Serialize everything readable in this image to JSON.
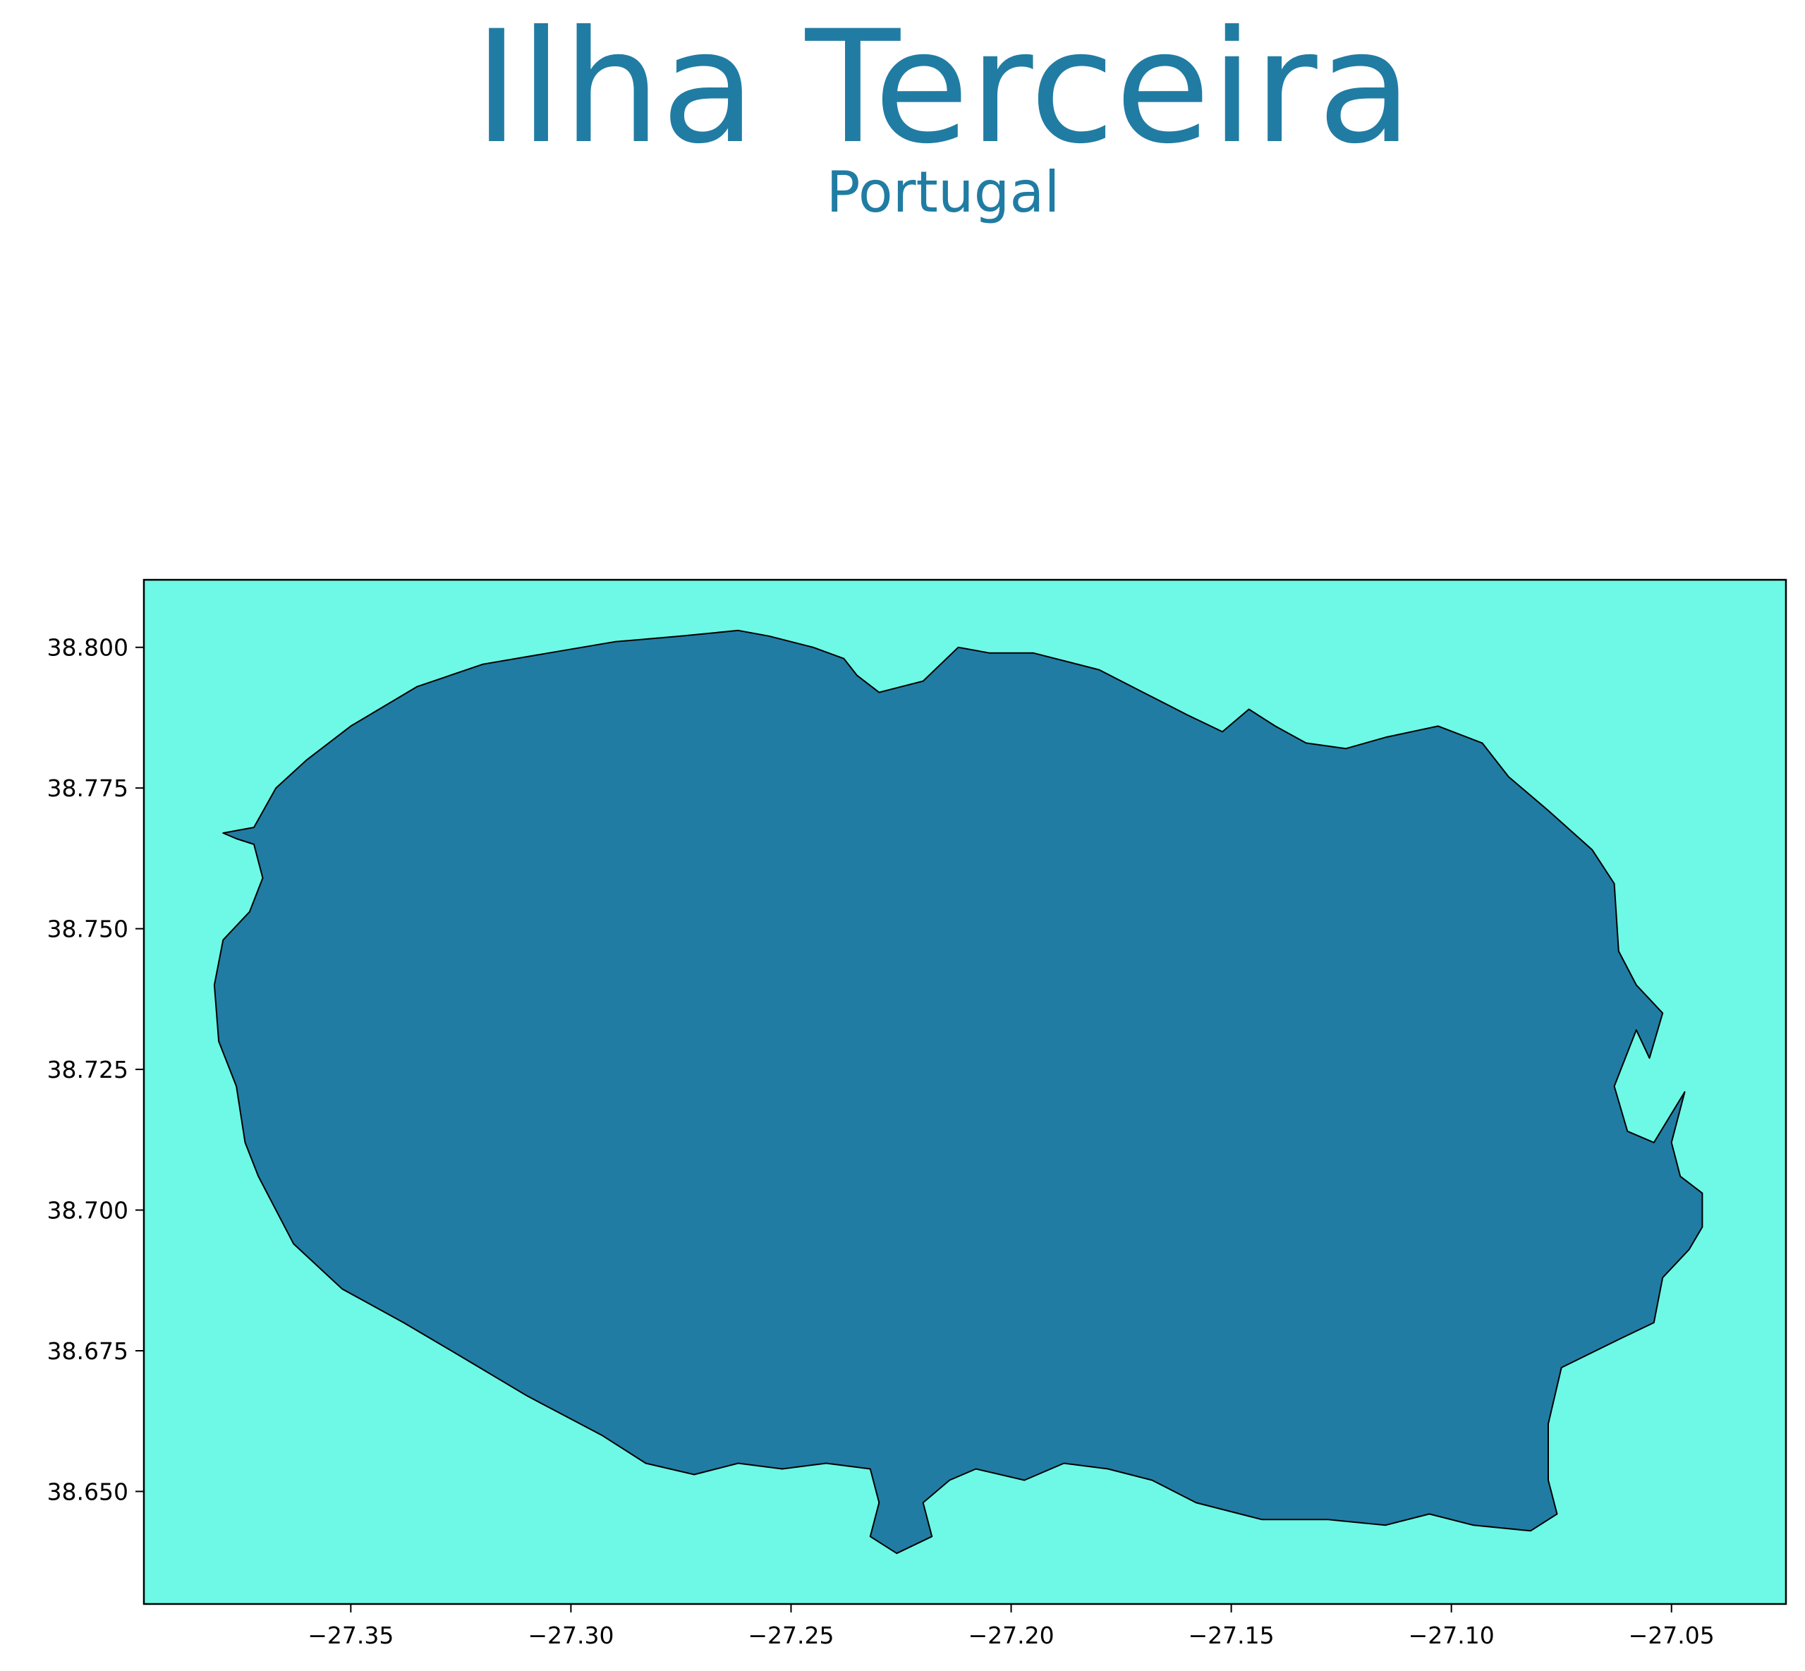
{
  "title": "Ilha Terceira",
  "subtitle": "Portugal",
  "colors": {
    "title": "#217ca3",
    "sea": "#6ef8e6",
    "land": "#217ca3",
    "outline": "#000000",
    "axis": "#000000"
  },
  "map": {
    "lon_range": [
      -27.397,
      -27.024
    ],
    "lat_range": [
      38.63,
      38.812
    ],
    "x_ticks": [
      {
        "value": -27.35,
        "label": "−27.35"
      },
      {
        "value": -27.3,
        "label": "−27.30"
      },
      {
        "value": -27.25,
        "label": "−27.25"
      },
      {
        "value": -27.2,
        "label": "−27.20"
      },
      {
        "value": -27.15,
        "label": "−27.15"
      },
      {
        "value": -27.1,
        "label": "−27.10"
      },
      {
        "value": -27.05,
        "label": "−27.05"
      }
    ],
    "y_ticks": [
      {
        "value": 38.65,
        "label": "38.650"
      },
      {
        "value": 38.675,
        "label": "38.675"
      },
      {
        "value": 38.7,
        "label": "38.700"
      },
      {
        "value": 38.725,
        "label": "38.725"
      },
      {
        "value": 38.75,
        "label": "38.750"
      },
      {
        "value": 38.775,
        "label": "38.775"
      },
      {
        "value": 38.8,
        "label": "38.800"
      }
    ],
    "coastline": [
      [
        -27.379,
        38.767
      ],
      [
        -27.376,
        38.766
      ],
      [
        -27.372,
        38.765
      ],
      [
        -27.37,
        38.759
      ],
      [
        -27.373,
        38.753
      ],
      [
        -27.379,
        38.748
      ],
      [
        -27.381,
        38.74
      ],
      [
        -27.38,
        38.73
      ],
      [
        -27.376,
        38.722
      ],
      [
        -27.374,
        38.712
      ],
      [
        -27.371,
        38.706
      ],
      [
        -27.363,
        38.694
      ],
      [
        -27.352,
        38.686
      ],
      [
        -27.338,
        38.68
      ],
      [
        -27.325,
        38.674
      ],
      [
        -27.31,
        38.667
      ],
      [
        -27.293,
        38.66
      ],
      [
        -27.283,
        38.655
      ],
      [
        -27.272,
        38.653
      ],
      [
        -27.262,
        38.655
      ],
      [
        -27.252,
        38.654
      ],
      [
        -27.242,
        38.655
      ],
      [
        -27.232,
        38.654
      ],
      [
        -27.23,
        38.648
      ],
      [
        -27.232,
        38.642
      ],
      [
        -27.226,
        38.639
      ],
      [
        -27.218,
        38.642
      ],
      [
        -27.22,
        38.648
      ],
      [
        -27.214,
        38.652
      ],
      [
        -27.208,
        38.654
      ],
      [
        -27.197,
        38.652
      ],
      [
        -27.188,
        38.655
      ],
      [
        -27.178,
        38.654
      ],
      [
        -27.168,
        38.652
      ],
      [
        -27.158,
        38.648
      ],
      [
        -27.143,
        38.645
      ],
      [
        -27.128,
        38.645
      ],
      [
        -27.115,
        38.644
      ],
      [
        -27.105,
        38.646
      ],
      [
        -27.095,
        38.644
      ],
      [
        -27.082,
        38.643
      ],
      [
        -27.076,
        38.646
      ],
      [
        -27.078,
        38.652
      ],
      [
        -27.078,
        38.662
      ],
      [
        -27.075,
        38.672
      ],
      [
        -27.062,
        38.677
      ],
      [
        -27.054,
        38.68
      ],
      [
        -27.052,
        38.688
      ],
      [
        -27.046,
        38.693
      ],
      [
        -27.043,
        38.697
      ],
      [
        -27.043,
        38.703
      ],
      [
        -27.048,
        38.706
      ],
      [
        -27.05,
        38.712
      ],
      [
        -27.047,
        38.721
      ],
      [
        -27.054,
        38.712
      ],
      [
        -27.06,
        38.714
      ],
      [
        -27.063,
        38.722
      ],
      [
        -27.058,
        38.732
      ],
      [
        -27.055,
        38.727
      ],
      [
        -27.052,
        38.735
      ],
      [
        -27.058,
        38.74
      ],
      [
        -27.062,
        38.746
      ],
      [
        -27.063,
        38.758
      ],
      [
        -27.068,
        38.764
      ],
      [
        -27.078,
        38.771
      ],
      [
        -27.087,
        38.777
      ],
      [
        -27.093,
        38.783
      ],
      [
        -27.103,
        38.786
      ],
      [
        -27.115,
        38.784
      ],
      [
        -27.124,
        38.782
      ],
      [
        -27.133,
        38.783
      ],
      [
        -27.14,
        38.786
      ],
      [
        -27.146,
        38.789
      ],
      [
        -27.152,
        38.785
      ],
      [
        -27.16,
        38.788
      ],
      [
        -27.17,
        38.792
      ],
      [
        -27.18,
        38.796
      ],
      [
        -27.195,
        38.799
      ],
      [
        -27.205,
        38.799
      ],
      [
        -27.212,
        38.8
      ],
      [
        -27.22,
        38.794
      ],
      [
        -27.23,
        38.792
      ],
      [
        -27.235,
        38.795
      ],
      [
        -27.238,
        38.798
      ],
      [
        -27.245,
        38.8
      ],
      [
        -27.255,
        38.802
      ],
      [
        -27.262,
        38.803
      ],
      [
        -27.275,
        38.802
      ],
      [
        -27.29,
        38.801
      ],
      [
        -27.305,
        38.799
      ],
      [
        -27.32,
        38.797
      ],
      [
        -27.335,
        38.793
      ],
      [
        -27.35,
        38.786
      ],
      [
        -27.36,
        38.78
      ],
      [
        -27.367,
        38.775
      ],
      [
        -27.372,
        38.768
      ]
    ]
  }
}
